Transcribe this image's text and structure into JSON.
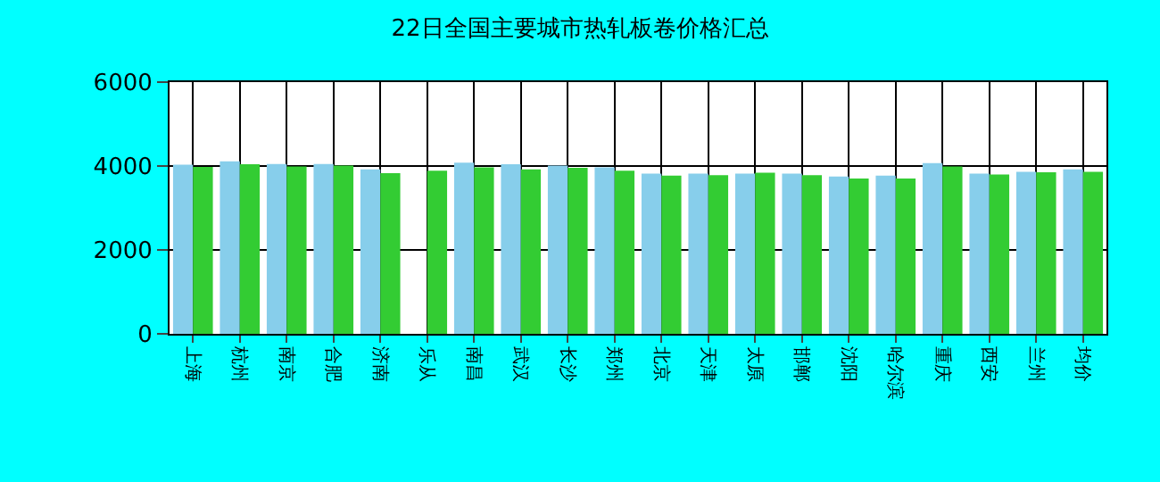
{
  "chart_data": {
    "type": "bar",
    "title": "22日全国主要城市热轧板卷价格汇总",
    "categories": [
      "上海",
      "杭州",
      "南京",
      "合肥",
      "济南",
      "乐从",
      "南昌",
      "武汉",
      "长沙",
      "郑州",
      "北京",
      "天津",
      "太原",
      "邯郸",
      "沈阳",
      "哈尔滨",
      "重庆",
      "西安",
      "兰州",
      "均价"
    ],
    "series": [
      {
        "color": "#87ceeb",
        "values": [
          4030,
          4110,
          4050,
          4050,
          3920,
          null,
          4080,
          4040,
          4010,
          3970,
          3820,
          3820,
          3820,
          3820,
          3750,
          3770,
          4070,
          3820,
          3860,
          3920
        ]
      },
      {
        "color": "#33cc33",
        "values": [
          3980,
          4040,
          3990,
          4010,
          3830,
          3890,
          3970,
          3920,
          3960,
          3890,
          3770,
          3780,
          3840,
          3780,
          3700,
          3700,
          3990,
          3800,
          3850,
          3860
        ]
      }
    ],
    "ylim": [
      0,
      6000
    ],
    "yticks": [
      0,
      2000,
      4000,
      6000
    ],
    "grid": true
  }
}
